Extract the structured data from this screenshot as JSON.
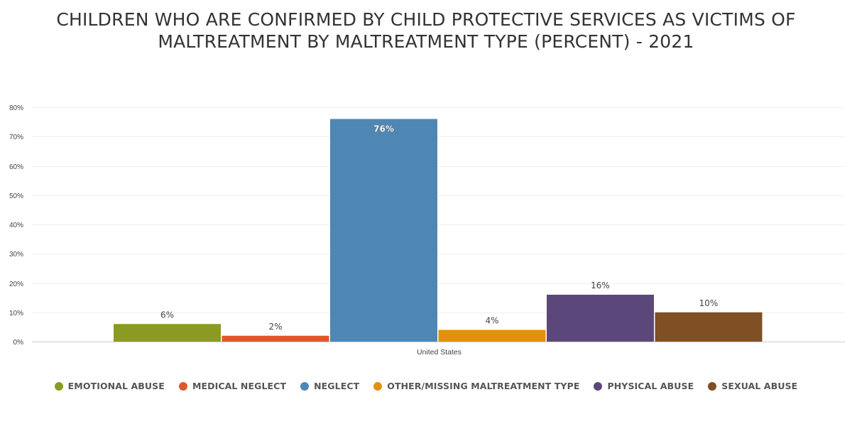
{
  "chart_data": {
    "type": "bar",
    "title_lines": [
      "CHILDREN WHO ARE CONFIRMED BY CHILD PROTECTIVE SERVICES AS VICTIMS OF",
      "MALTREATMENT BY MALTREATMENT TYPE (PERCENT) - 2021"
    ],
    "categories": [
      "United States"
    ],
    "series": [
      {
        "name": "EMOTIONAL ABUSE",
        "values": [
          6
        ],
        "label": "6%",
        "color": "#8a9a22"
      },
      {
        "name": "MEDICAL NEGLECT",
        "values": [
          2
        ],
        "label": "2%",
        "color": "#e0572a"
      },
      {
        "name": "NEGLECT",
        "values": [
          76
        ],
        "label": "76%",
        "color": "#4f87b4"
      },
      {
        "name": "OTHER/MISSING MALTREATMENT TYPE",
        "values": [
          4
        ],
        "label": "4%",
        "color": "#e3900f"
      },
      {
        "name": "PHYSICAL ABUSE",
        "values": [
          16
        ],
        "label": "16%",
        "color": "#5c477a"
      },
      {
        "name": "SEXUAL ABUSE",
        "values": [
          10
        ],
        "label": "10%",
        "color": "#7f5023"
      }
    ],
    "ylim": [
      0,
      80
    ],
    "yticks": [
      {
        "value": 0,
        "label": "0%"
      },
      {
        "value": 10,
        "label": "10%"
      },
      {
        "value": 20,
        "label": "20%"
      },
      {
        "value": 30,
        "label": "30%"
      },
      {
        "value": 40,
        "label": "40%"
      },
      {
        "value": 50,
        "label": "50%"
      },
      {
        "value": 60,
        "label": "60%"
      },
      {
        "value": 70,
        "label": "70%"
      },
      {
        "value": 80,
        "label": "80%"
      }
    ],
    "grid": true,
    "legend_position": "bottom"
  }
}
